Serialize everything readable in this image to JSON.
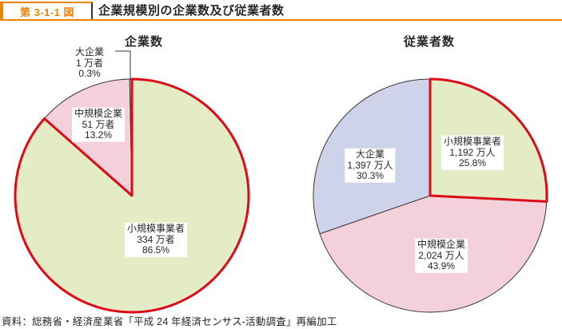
{
  "header": {
    "figure_label": "第 3-1-1 図",
    "title": "企業規模別の企業数及び従業者数"
  },
  "source": "資料：総務省・経済産業省「平成 24 年経済センサス-活動調査」再編加工",
  "colors": {
    "accent": "#ef8200",
    "green": "#e4ecc6",
    "pink": "#f4d0da",
    "lavender": "#ced3e9",
    "highlight": "#dd0b17",
    "stroke": "#3a3632",
    "ink": "#262626"
  },
  "chart_data": [
    {
      "type": "pie",
      "title": "企業数",
      "unit": "万者",
      "legend_position": "none",
      "slices": [
        {
          "name": "小規模事業者",
          "amount": "334 万者",
          "value": 334,
          "pct": 86.5,
          "color_key": "green",
          "highlighted": true
        },
        {
          "name": "中規模企業",
          "amount": "51 万者",
          "value": 51,
          "pct": 13.2,
          "color_key": "pink",
          "highlighted": false
        },
        {
          "name": "大企業",
          "amount": "1 万者",
          "value": 1,
          "pct": 0.3,
          "color_key": "lavender",
          "highlighted": false
        }
      ]
    },
    {
      "type": "pie",
      "title": "従業者数",
      "unit": "万人",
      "legend_position": "none",
      "slices": [
        {
          "name": "小規模事業者",
          "amount": "1,192 万人",
          "value": 1192,
          "pct": 25.8,
          "color_key": "green",
          "highlighted": true
        },
        {
          "name": "中規模企業",
          "amount": "2,024 万人",
          "value": 2024,
          "pct": 43.9,
          "color_key": "pink",
          "highlighted": false
        },
        {
          "name": "大企業",
          "amount": "1,397 万人",
          "value": 1397,
          "pct": 30.3,
          "color_key": "lavender",
          "highlighted": false
        }
      ]
    }
  ]
}
